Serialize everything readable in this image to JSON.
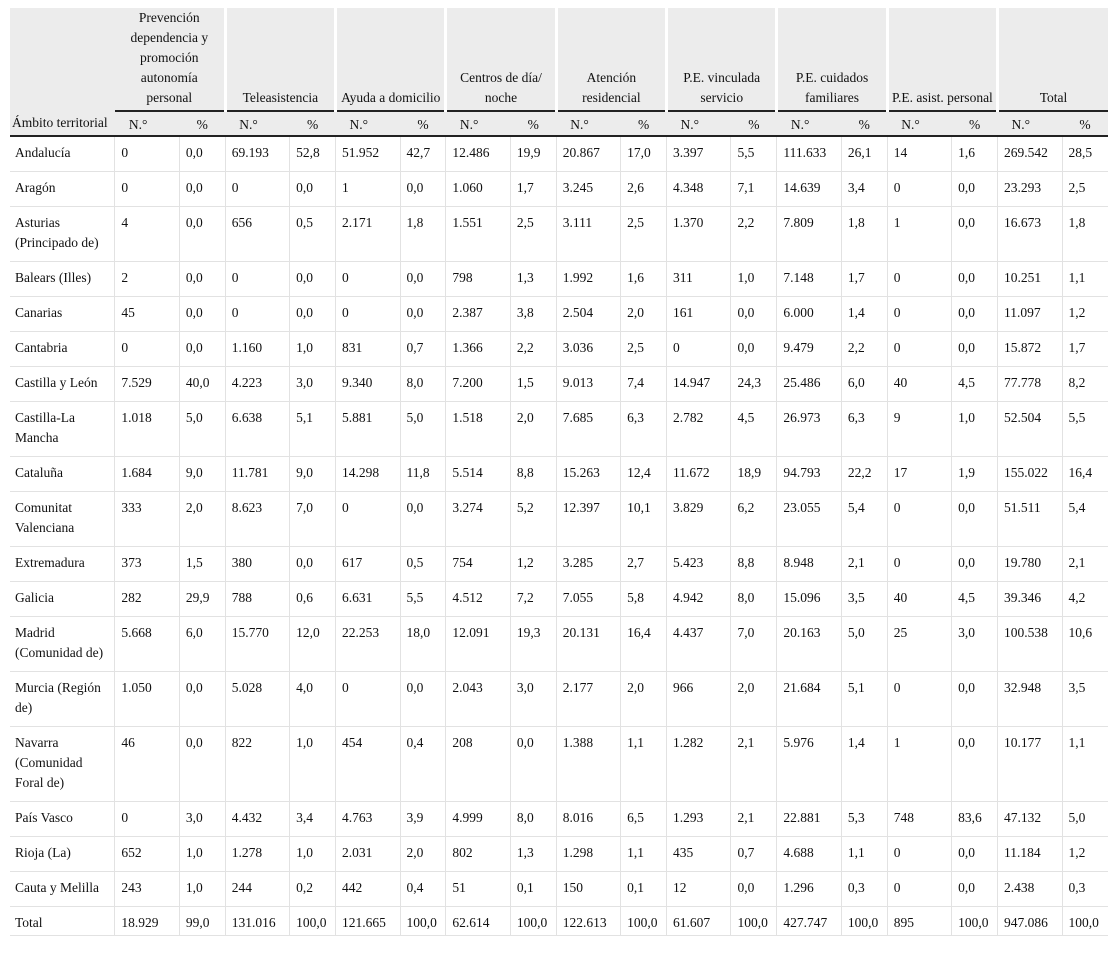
{
  "table": {
    "territory_header": "Ámbito territorial",
    "groups": [
      "Prevención dependencia y promoción autonomía personal",
      "Teleasistencia",
      "Ayuda a domicilio",
      "Centros de día/ noche",
      "Atención residencial",
      "P.E. vinculada servicio",
      "P.E. cuidados familiares",
      "P.E. asist. personal",
      "Total"
    ],
    "sub_n": "N.°",
    "sub_pct": "%",
    "rows": [
      [
        "Andalucía",
        "0",
        "0,0",
        "69.193",
        "52,8",
        "51.952",
        "42,7",
        "12.486",
        "19,9",
        "20.867",
        "17,0",
        "3.397",
        "5,5",
        "111.633",
        "26,1",
        "14",
        "1,6",
        "269.542",
        "28,5"
      ],
      [
        "Aragón",
        "0",
        "0,0",
        "0",
        "0,0",
        "1",
        "0,0",
        "1.060",
        "1,7",
        "3.245",
        "2,6",
        "4.348",
        "7,1",
        "14.639",
        "3,4",
        "0",
        "0,0",
        "23.293",
        "2,5"
      ],
      [
        "Asturias (Principado de)",
        "4",
        "0,0",
        "656",
        "0,5",
        "2.171",
        "1,8",
        "1.551",
        "2,5",
        "3.111",
        "2,5",
        "1.370",
        "2,2",
        "7.809",
        "1,8",
        "1",
        "0,0",
        "16.673",
        "1,8"
      ],
      [
        "Balears (Illes)",
        "2",
        "0,0",
        "0",
        "0,0",
        "0",
        "0,0",
        "798",
        "1,3",
        "1.992",
        "1,6",
        "311",
        "1,0",
        "7.148",
        "1,7",
        "0",
        "0,0",
        "10.251",
        "1,1"
      ],
      [
        "Canarias",
        "45",
        "0,0",
        "0",
        "0,0",
        "0",
        "0,0",
        "2.387",
        "3,8",
        "2.504",
        "2,0",
        "161",
        "0,0",
        "6.000",
        "1,4",
        "0",
        "0,0",
        "11.097",
        "1,2"
      ],
      [
        "Cantabria",
        "0",
        "0,0",
        "1.160",
        "1,0",
        "831",
        "0,7",
        "1.366",
        "2,2",
        "3.036",
        "2,5",
        "0",
        "0,0",
        "9.479",
        "2,2",
        "0",
        "0,0",
        "15.872",
        "1,7"
      ],
      [
        "Castilla y León",
        "7.529",
        "40,0",
        "4.223",
        "3,0",
        "9.340",
        "8,0",
        "7.200",
        "1,5",
        "9.013",
        "7,4",
        "14.947",
        "24,3",
        "25.486",
        "6,0",
        "40",
        "4,5",
        "77.778",
        "8,2"
      ],
      [
        "Castilla-La Mancha",
        "1.018",
        "5,0",
        "6.638",
        "5,1",
        "5.881",
        "5,0",
        "1.518",
        "2,0",
        "7.685",
        "6,3",
        "2.782",
        "4,5",
        "26.973",
        "6,3",
        "9",
        "1,0",
        "52.504",
        "5,5"
      ],
      [
        "Cataluña",
        "1.684",
        "9,0",
        "11.781",
        "9,0",
        "14.298",
        "11,8",
        "5.514",
        "8,8",
        "15.263",
        "12,4",
        "11.672",
        "18,9",
        "94.793",
        "22,2",
        "17",
        "1,9",
        "155.022",
        "16,4"
      ],
      [
        "Comunitat Valenciana",
        "333",
        "2,0",
        "8.623",
        "7,0",
        "0",
        "0,0",
        "3.274",
        "5,2",
        "12.397",
        "10,1",
        "3.829",
        "6,2",
        "23.055",
        "5,4",
        "0",
        "0,0",
        "51.511",
        "5,4"
      ],
      [
        "Extremadura",
        "373",
        "1,5",
        "380",
        "0,0",
        "617",
        "0,5",
        "754",
        "1,2",
        "3.285",
        "2,7",
        "5.423",
        "8,8",
        "8.948",
        "2,1",
        "0",
        "0,0",
        "19.780",
        "2,1"
      ],
      [
        "Galicia",
        "282",
        "29,9",
        "788",
        "0,6",
        "6.631",
        "5,5",
        "4.512",
        "7,2",
        "7.055",
        "5,8",
        "4.942",
        "8,0",
        "15.096",
        "3,5",
        "40",
        "4,5",
        "39.346",
        "4,2"
      ],
      [
        "Madrid (Comunidad de)",
        "5.668",
        "6,0",
        "15.770",
        "12,0",
        "22.253",
        "18,0",
        "12.091",
        "19,3",
        "20.131",
        "16,4",
        "4.437",
        "7,0",
        "20.163",
        "5,0",
        "25",
        "3,0",
        "100.538",
        "10,6"
      ],
      [
        "Murcia (Región de)",
        "1.050",
        "0,0",
        "5.028",
        "4,0",
        "0",
        "0,0",
        "2.043",
        "3,0",
        "2.177",
        "2,0",
        "966",
        "2,0",
        "21.684",
        "5,1",
        "0",
        "0,0",
        "32.948",
        "3,5"
      ],
      [
        "Navarra (Comunidad Foral de)",
        "46",
        "0,0",
        "822",
        "1,0",
        "454",
        "0,4",
        "208",
        "0,0",
        "1.388",
        "1,1",
        "1.282",
        "2,1",
        "5.976",
        "1,4",
        "1",
        "0,0",
        "10.177",
        "1,1"
      ],
      [
        "País Vasco",
        "0",
        "3,0",
        "4.432",
        "3,4",
        "4.763",
        "3,9",
        "4.999",
        "8,0",
        "8.016",
        "6,5",
        "1.293",
        "2,1",
        "22.881",
        "5,3",
        "748",
        "83,6",
        "47.132",
        "5,0"
      ],
      [
        "Rioja (La)",
        "652",
        "1,0",
        "1.278",
        "1,0",
        "2.031",
        "2,0",
        "802",
        "1,3",
        "1.298",
        "1,1",
        "435",
        "0,7",
        "4.688",
        "1,1",
        "0",
        "0,0",
        "11.184",
        "1,2"
      ],
      [
        "Cauta y Melilla",
        "243",
        "1,0",
        "244",
        "0,2",
        "442",
        "0,4",
        "51",
        "0,1",
        "150",
        "0,1",
        "12",
        "0,0",
        "1.296",
        "0,3",
        "0",
        "0,0",
        "2.438",
        "0,3"
      ],
      [
        "Total",
        "18.929",
        "99,0",
        "131.016",
        "100,0",
        "121.665",
        "100,0",
        "62.614",
        "100,0",
        "122.613",
        "100,0",
        "61.607",
        "100,0",
        "427.747",
        "100,0",
        "895",
        "100,0",
        "947.086",
        "100,0"
      ]
    ]
  }
}
